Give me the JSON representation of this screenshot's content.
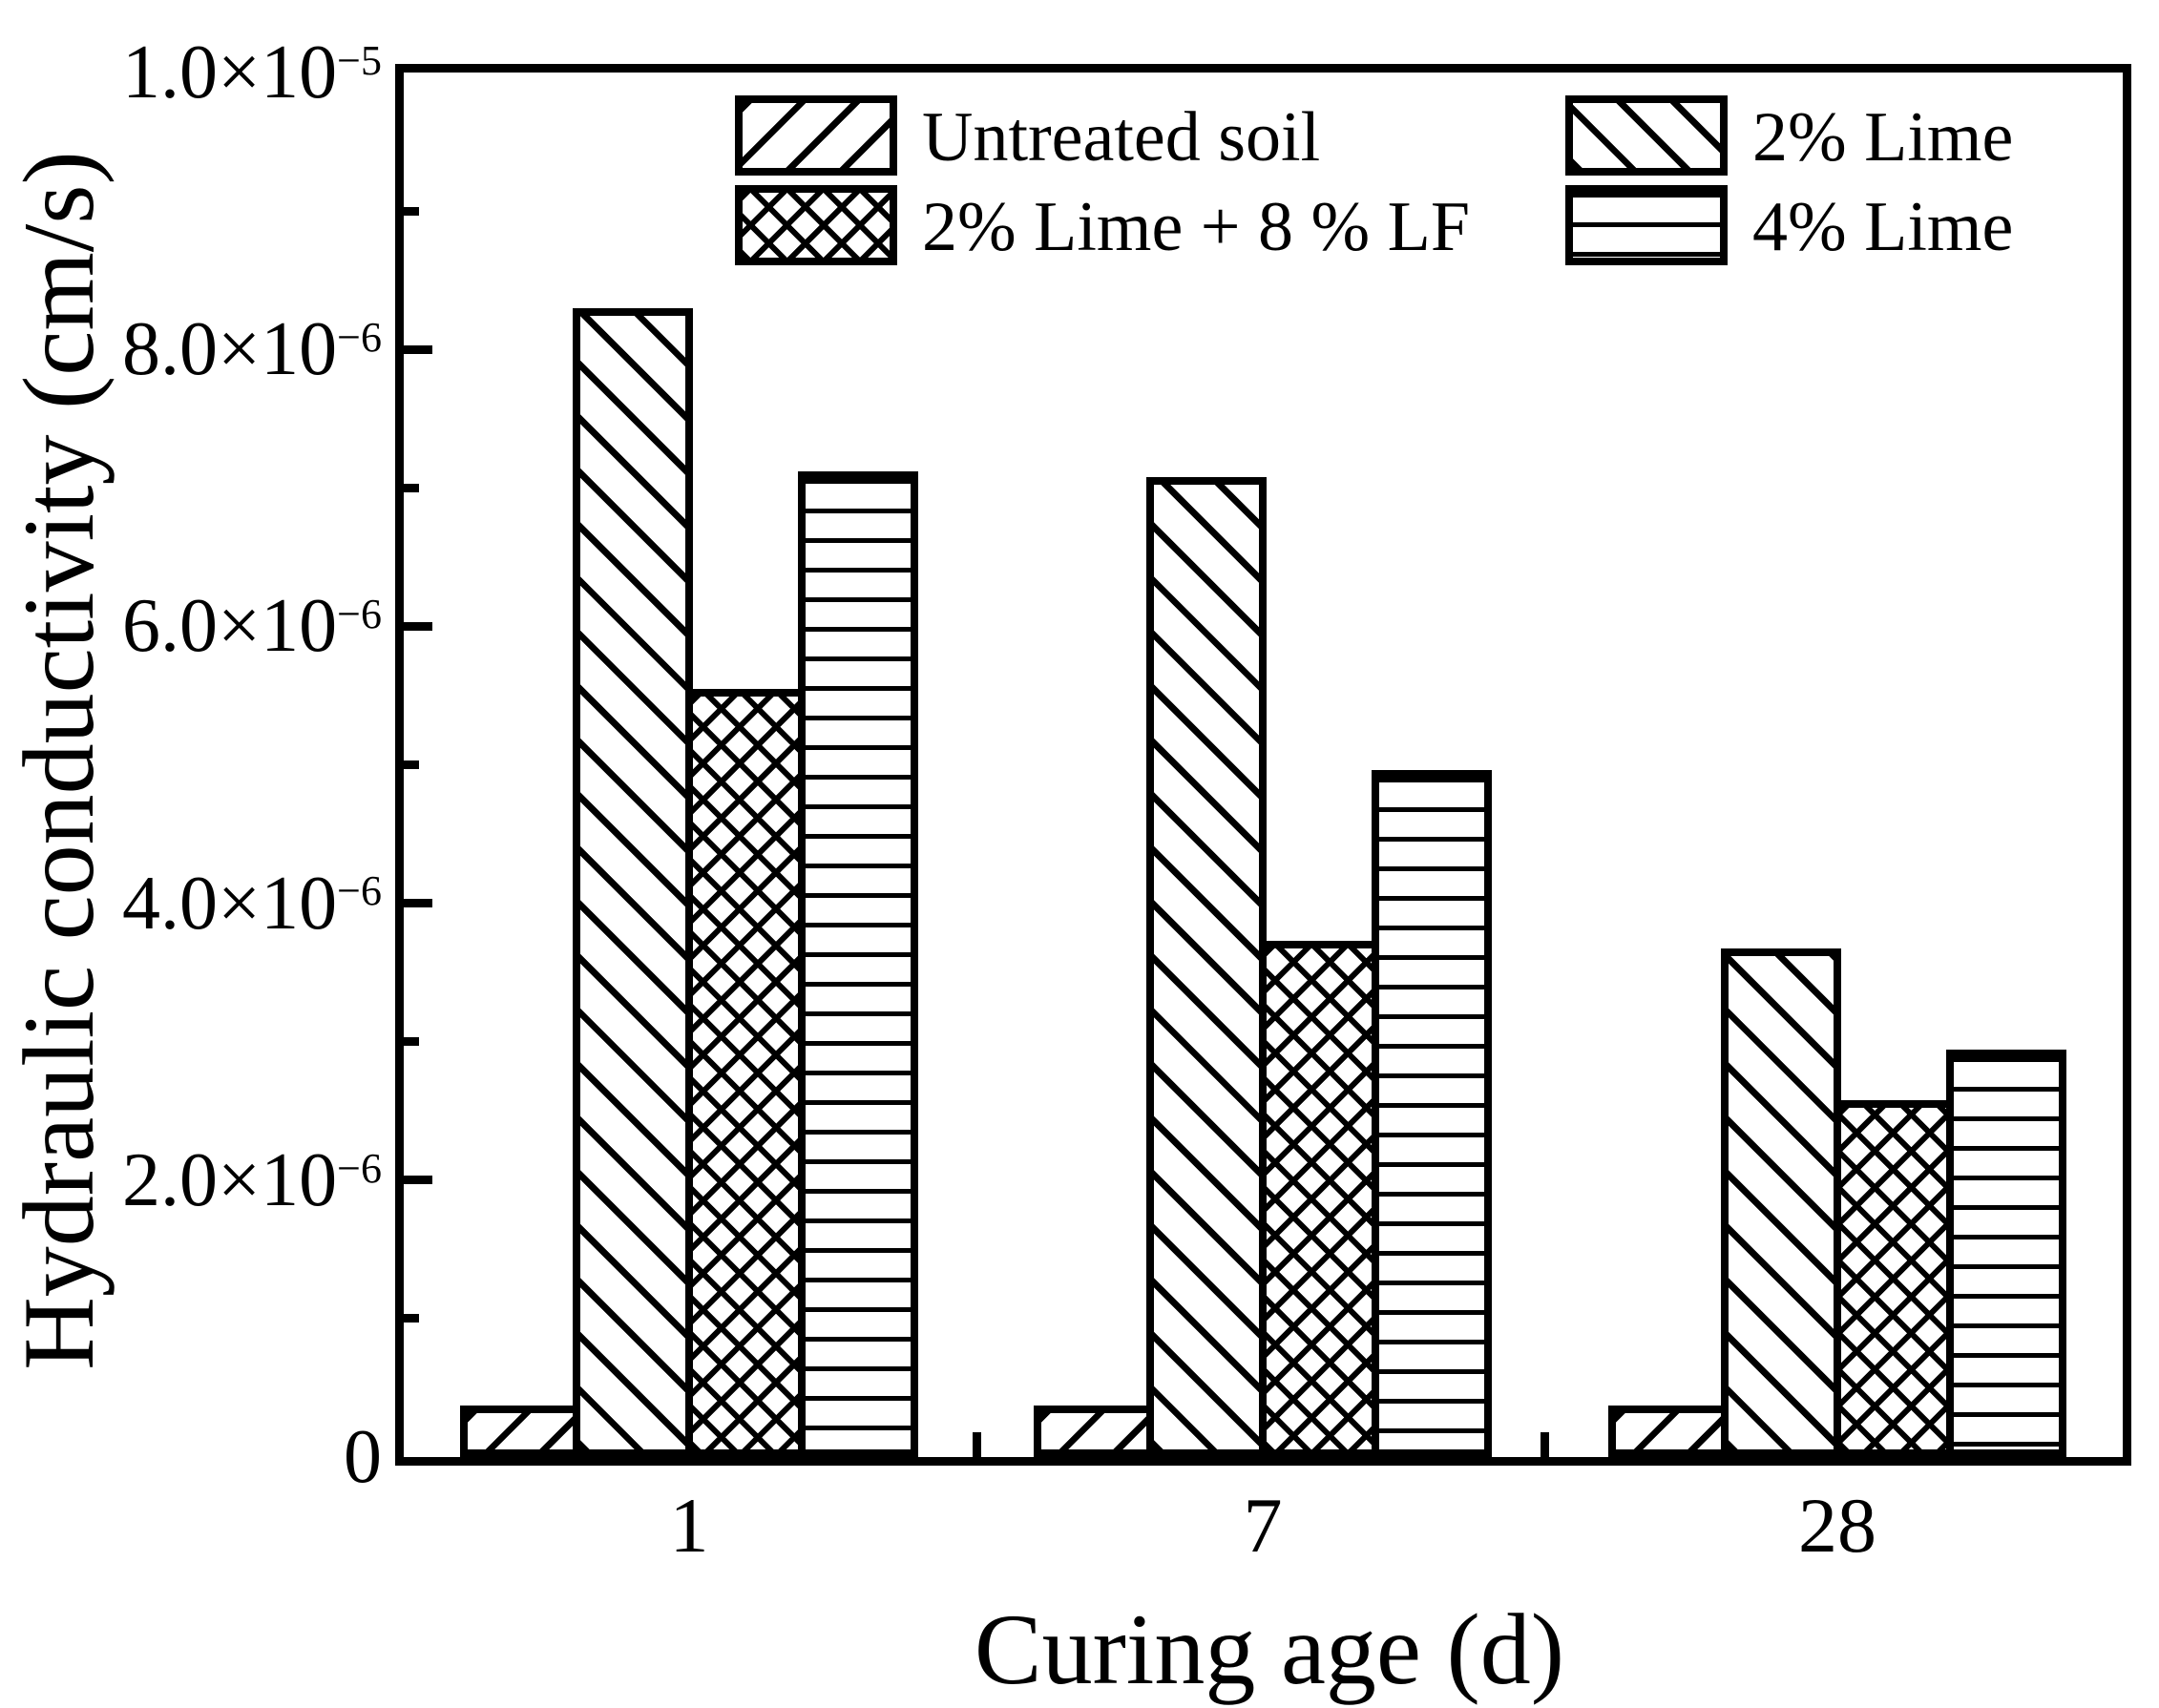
{
  "chart_data": {
    "type": "bar",
    "title": "",
    "xlabel": "Curing age (d)",
    "ylabel": "Hydraulic conductivity (cm/s)",
    "categories": [
      "1",
      "7",
      "28"
    ],
    "series": [
      {
        "name": "Untreated soil",
        "pattern": "diagonal-forward",
        "values": [
          3.7e-07,
          3.7e-07,
          3.7e-07
        ]
      },
      {
        "name": "2% Lime",
        "pattern": "diagonal-back",
        "values": [
          8.3e-06,
          7.08e-06,
          3.67e-06
        ]
      },
      {
        "name": "2% Lime + 8 % LF",
        "pattern": "crosshatch",
        "values": [
          5.55e-06,
          3.73e-06,
          2.58e-06
        ]
      },
      {
        "name": "4% Lime",
        "pattern": "horizontal",
        "values": [
          7.12e-06,
          4.96e-06,
          2.94e-06
        ]
      }
    ],
    "ylim": [
      0,
      1e-05
    ],
    "y_major_step": 2e-06,
    "y_minor_step": 1e-06,
    "grid": false,
    "legend_position": "top-inside",
    "bar_fill": "#ffffff",
    "bar_edge_color": "#000000",
    "background": "#ffffff"
  },
  "y_axis": {
    "tick_labels": [
      {
        "text": "1.0×10",
        "sup": "−5",
        "value": 1e-05
      },
      {
        "text": "8.0×10",
        "sup": "−6",
        "value": 8e-06
      },
      {
        "text": "6.0×10",
        "sup": "−6",
        "value": 6e-06
      },
      {
        "text": "4.0×10",
        "sup": "−6",
        "value": 4e-06
      },
      {
        "text": "2.0×10",
        "sup": "−6",
        "value": 2e-06
      },
      {
        "text": "0",
        "sup": "",
        "value": 0
      }
    ]
  },
  "x_axis": {
    "tick_labels": [
      "1",
      "7",
      "28"
    ]
  },
  "legend": {
    "rows": [
      [
        "Untreated soil",
        "2% Lime"
      ],
      [
        "2% Lime + 8 % LF",
        "4% Lime"
      ]
    ]
  }
}
